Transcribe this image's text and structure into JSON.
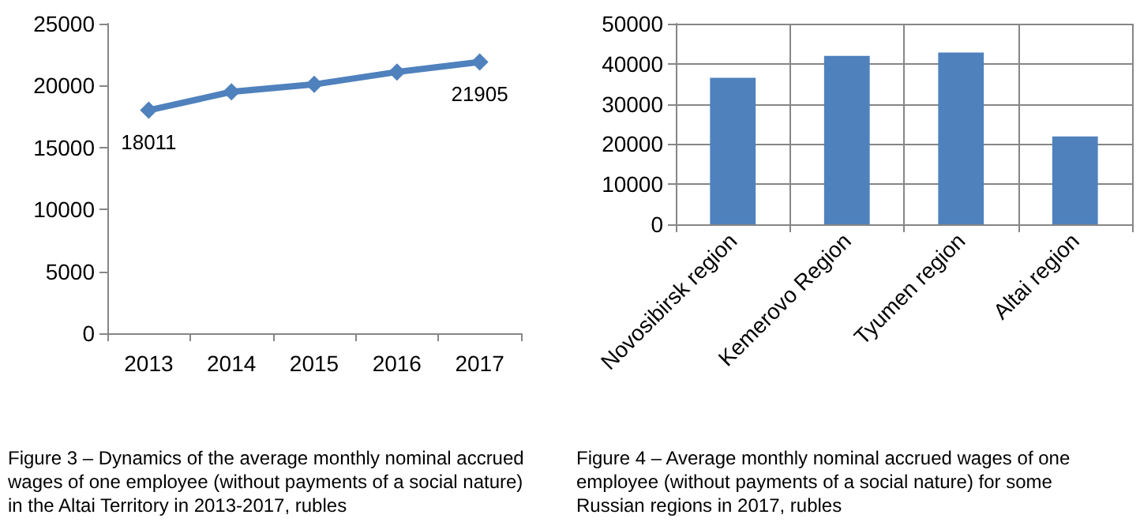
{
  "chart_data": [
    {
      "type": "line",
      "categories": [
        "2013",
        "2014",
        "2015",
        "2016",
        "2017"
      ],
      "series": [
        {
          "color": "#4f81bd",
          "values": [
            18011,
            19500,
            20100,
            21100,
            21905
          ],
          "value_labels": [
            "18011",
            null,
            null,
            null,
            "21905"
          ]
        }
      ],
      "ylim": [
        0,
        25000
      ],
      "yticks": [
        0,
        5000,
        10000,
        15000,
        20000,
        25000
      ],
      "grid": false,
      "marker": "diamond",
      "line_style": "solid",
      "annotations": [
        "Figure 3 – Dynamics of the average monthly nominal accrued wages of one employee (without payments of a social nature) in the Altai Territory in 2013-2017, rubles"
      ]
    },
    {
      "type": "bar",
      "categories": [
        "Novosibirsk region",
        "Kemerovo Region",
        "Tyumen region",
        "Altai region"
      ],
      "series": [
        {
          "color": "#4f81bd",
          "values": [
            36500,
            42000,
            42800,
            21900
          ]
        }
      ],
      "ylim": [
        0,
        50000
      ],
      "yticks": [
        0,
        10000,
        20000,
        30000,
        40000,
        50000
      ],
      "grid": true,
      "annotations": [
        "Figure 4 – Average monthly nominal accrued wages of one employee (without payments of a social nature) for some Russian regions in 2017, rubles"
      ]
    }
  ]
}
